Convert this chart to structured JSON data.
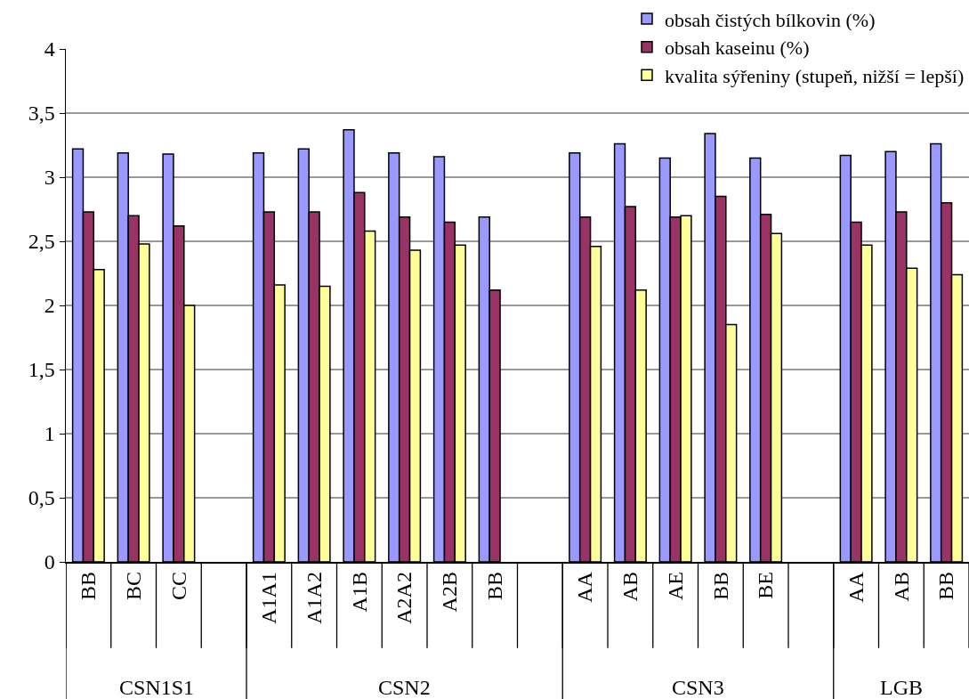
{
  "chart_data": {
    "type": "bar",
    "categories": [
      "BB",
      "BC",
      "CC",
      null,
      "A1A1",
      "A1A2",
      "A1B",
      "A2A2",
      "A2B",
      "BB",
      null,
      "AA",
      "AB",
      "AE",
      "BB",
      "BE",
      null,
      "AA",
      "AB",
      "BB"
    ],
    "series": [
      {
        "name": "obsah čistých bílkovin (%)",
        "color": "#9999ff",
        "values": [
          3.22,
          3.19,
          3.18,
          null,
          3.19,
          3.22,
          3.37,
          3.19,
          3.16,
          2.69,
          null,
          3.19,
          3.26,
          3.15,
          3.34,
          3.15,
          null,
          3.17,
          3.2,
          3.26
        ]
      },
      {
        "name": "obsah kaseinu (%)",
        "color": "#993366",
        "values": [
          2.73,
          2.7,
          2.62,
          null,
          2.73,
          2.73,
          2.88,
          2.69,
          2.65,
          2.12,
          null,
          2.69,
          2.77,
          2.69,
          2.85,
          2.71,
          null,
          2.65,
          2.73,
          2.8
        ]
      },
      {
        "name": "kvalita sýřeniny (stupeň, nižší = lepší)",
        "color": "#ffff99",
        "values": [
          2.28,
          2.48,
          2.0,
          null,
          2.16,
          2.15,
          2.58,
          2.43,
          2.47,
          null,
          null,
          2.46,
          2.12,
          2.7,
          1.85,
          2.56,
          null,
          2.47,
          2.29,
          2.24
        ]
      }
    ],
    "annotations": [
      "CSN1S1",
      "CSN2",
      "CSN3",
      "LGB"
    ],
    "ylim": [
      0,
      4
    ],
    "yticks": [
      0,
      {
        "value": 0.5,
        "label": "0,5"
      },
      1,
      {
        "value": 1.5,
        "label": "1,5"
      },
      2,
      {
        "value": 2.5,
        "label": "2,5"
      },
      3,
      {
        "value": 3.5,
        "label": "3,5"
      },
      4
    ],
    "grid": "y",
    "legend": "top right"
  }
}
